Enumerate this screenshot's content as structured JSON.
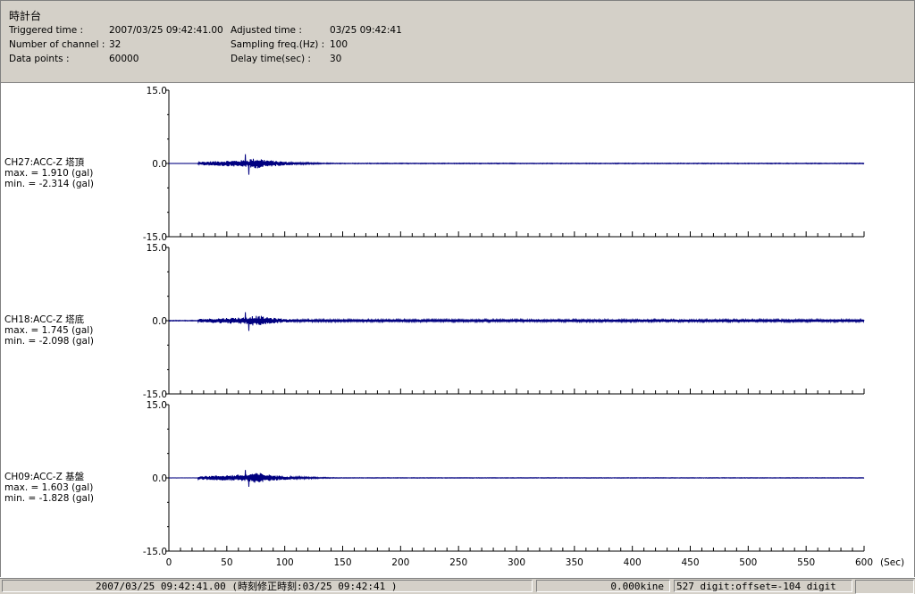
{
  "header": {
    "title": "時計台",
    "left": [
      {
        "label": "Triggered time :",
        "value": "2007/03/25 09:42:41.00"
      },
      {
        "label": "Number of channel :",
        "value": "32"
      },
      {
        "label": "Data points :",
        "value": "60000"
      }
    ],
    "right": [
      {
        "label": "Adjusted time :",
        "value": "03/25 09:42:41"
      },
      {
        "label": "Sampling freq.(Hz) :",
        "value": "100"
      },
      {
        "label": "Delay time(sec) :",
        "value": "30"
      }
    ]
  },
  "channels": [
    {
      "name": "CH27:ACC-Z 塔頂",
      "max": "max. = 1.910 (gal)",
      "min": "min. = -2.314 (gal)"
    },
    {
      "name": "CH18:ACC-Z 塔底",
      "max": "max. = 1.745 (gal)",
      "min": "min. = -2.098 (gal)"
    },
    {
      "name": "CH09:ACC-Z 基盤",
      "max": "max. = 1.603 (gal)",
      "min": "min. = -1.828 (gal)"
    }
  ],
  "statusbar": {
    "time": "2007/03/25 09:42:41.00  (時刻修正時刻:03/25 09:42:41  )",
    "kine": "0.000kine",
    "digit": "527 digit:offset=-104 digit"
  },
  "chart_data": {
    "type": "line",
    "xlim": [
      0,
      600
    ],
    "x_unit": "(Sec)",
    "x_ticks": [
      "0",
      "50",
      "100",
      "150",
      "200",
      "250",
      "300",
      "350",
      "400",
      "450",
      "500",
      "550",
      "600"
    ],
    "y_ticks": [
      "15.0",
      "0.0",
      "-15.0"
    ],
    "ylim": [
      -15,
      15
    ],
    "series": [
      {
        "name": "CH27:ACC-Z 塔頂",
        "max": 1.91,
        "min": -2.314,
        "color": "#000080",
        "noise": 0.08
      },
      {
        "name": "CH18:ACC-Z 塔底",
        "max": 1.745,
        "min": -2.098,
        "color": "#000080",
        "noise": 0.25
      },
      {
        "name": "CH09:ACC-Z 基盤",
        "max": 1.603,
        "min": -1.828,
        "color": "#000080",
        "noise": 0.06
      }
    ]
  }
}
